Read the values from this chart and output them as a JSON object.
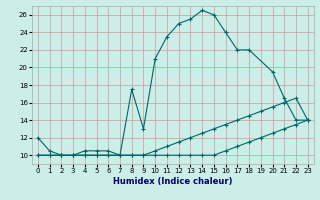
{
  "xlabel": "Humidex (Indice chaleur)",
  "background_color": "#cceee8",
  "grid_color": "#cc9999",
  "line_color": "#006666",
  "xlim": [
    -0.5,
    23.5
  ],
  "ylim": [
    9.0,
    27.0
  ],
  "xticks": [
    0,
    1,
    2,
    3,
    4,
    5,
    6,
    7,
    8,
    9,
    10,
    11,
    12,
    13,
    14,
    15,
    16,
    17,
    18,
    19,
    20,
    21,
    22,
    23
  ],
  "yticks": [
    10,
    12,
    14,
    16,
    18,
    20,
    22,
    24,
    26
  ],
  "line1_x": [
    0,
    1,
    2,
    3,
    4,
    5,
    6,
    7,
    8,
    9,
    10,
    11,
    12,
    13,
    14,
    15,
    16,
    17,
    18,
    20,
    21,
    22,
    23
  ],
  "line1_y": [
    12,
    10.5,
    10,
    10,
    10.5,
    10.5,
    10.5,
    10,
    17.5,
    13,
    21,
    23.5,
    25,
    25.5,
    26.5,
    26,
    24,
    22,
    22,
    19.5,
    16.5,
    14,
    14
  ],
  "line2_x": [
    0,
    1,
    2,
    3,
    4,
    5,
    6,
    7,
    8,
    9,
    10,
    11,
    12,
    13,
    14,
    15,
    16,
    17,
    18,
    19,
    20,
    21,
    22,
    23
  ],
  "line2_y": [
    10,
    10,
    10,
    10,
    10,
    10,
    10,
    10,
    10,
    10,
    10.5,
    11,
    11.5,
    12,
    12.5,
    13,
    13.5,
    14,
    14.5,
    15,
    15.5,
    16,
    16.5,
    14
  ],
  "line3_x": [
    0,
    1,
    2,
    3,
    4,
    5,
    6,
    7,
    8,
    9,
    10,
    11,
    12,
    13,
    14,
    15,
    16,
    17,
    18,
    19,
    20,
    21,
    22,
    23
  ],
  "line3_y": [
    10,
    10,
    10,
    10,
    10,
    10,
    10,
    10,
    10,
    10,
    10,
    10,
    10,
    10,
    10,
    10,
    10.5,
    11,
    11.5,
    12,
    12.5,
    13,
    13.5,
    14
  ]
}
